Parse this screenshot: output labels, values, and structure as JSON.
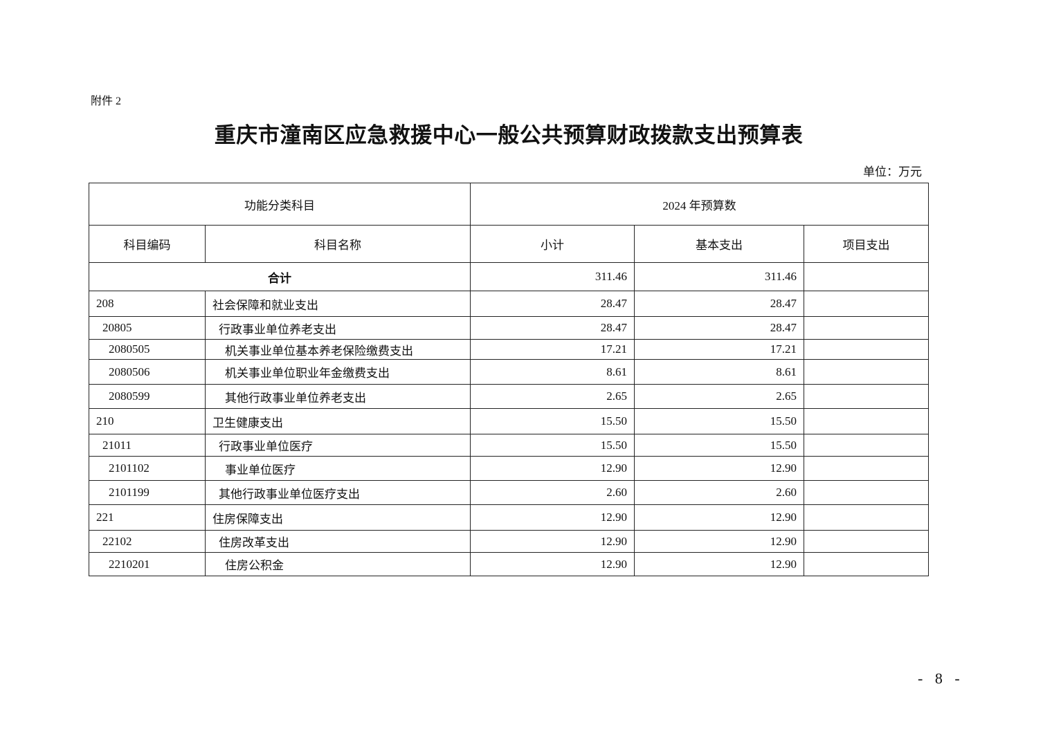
{
  "attachment_label": "附件 2",
  "title": "重庆市潼南区应急救援中心一般公共预算财政拨款支出预算表",
  "unit": "单位：万元",
  "table": {
    "group_headers": {
      "function": "功能分类科目",
      "budget": "2024 年预算数"
    },
    "headers": {
      "code": "科目编码",
      "name": "科目名称",
      "subtotal": "小计",
      "basic": "基本支出",
      "project": "项目支出"
    },
    "total": {
      "label": "合计",
      "subtotal": "311.46",
      "basic": "311.46",
      "project": ""
    },
    "rows": [
      {
        "code": "208",
        "name": "社会保障和就业支出",
        "subtotal": "28.47",
        "basic": "28.47",
        "project": ""
      },
      {
        "code": "20805",
        "name": "行政事业单位养老支出",
        "subtotal": "28.47",
        "basic": "28.47",
        "project": ""
      },
      {
        "code": "2080505",
        "name": "机关事业单位基本养老保险缴费支出",
        "subtotal": "17.21",
        "basic": "17.21",
        "project": ""
      },
      {
        "code": "2080506",
        "name": "机关事业单位职业年金缴费支出",
        "subtotal": "8.61",
        "basic": "8.61",
        "project": ""
      },
      {
        "code": "2080599",
        "name": "其他行政事业单位养老支出",
        "subtotal": "2.65",
        "basic": "2.65",
        "project": ""
      },
      {
        "code": "210",
        "name": "卫生健康支出",
        "subtotal": "15.50",
        "basic": "15.50",
        "project": ""
      },
      {
        "code": "21011",
        "name": "行政事业单位医疗",
        "subtotal": "15.50",
        "basic": "15.50",
        "project": ""
      },
      {
        "code": "2101102",
        "name": "事业单位医疗",
        "subtotal": "12.90",
        "basic": "12.90",
        "project": ""
      },
      {
        "code": "2101199",
        "name": "其他行政事业单位医疗支出",
        "subtotal": "2.60",
        "basic": "2.60",
        "project": ""
      },
      {
        "code": "221",
        "name": "住房保障支出",
        "subtotal": "12.90",
        "basic": "12.90",
        "project": ""
      },
      {
        "code": "22102",
        "name": "住房改革支出",
        "subtotal": "12.90",
        "basic": "12.90",
        "project": ""
      },
      {
        "code": "2210201",
        "name": "住房公积金",
        "subtotal": "12.90",
        "basic": "12.90",
        "project": ""
      }
    ]
  },
  "page_number": "- 8 -"
}
